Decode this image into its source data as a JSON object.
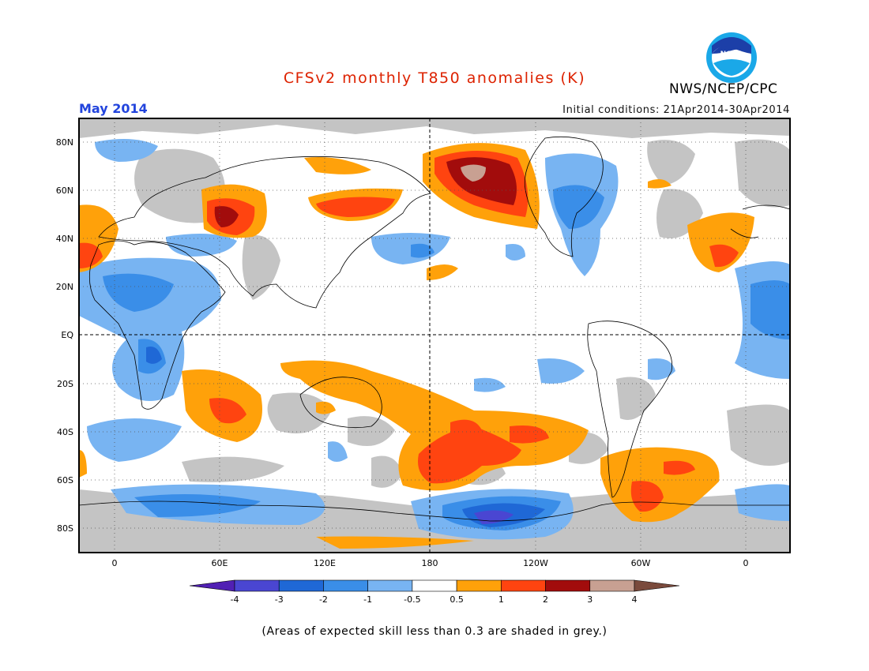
{
  "title": "CFSv2 monthly T850 anomalies (K)",
  "month_label": "May 2014",
  "initial_conditions": "Initial conditions: 21Apr2014-30Apr2014",
  "agency": "NWS/NCEP/CPC",
  "logo_text": "NOAA",
  "footnote": "(Areas of expected skill less than 0.3 are shaded in grey.)",
  "colors": {
    "title": "#dd2200",
    "month": "#2244dd",
    "grey_low_skill": "#c4c4c4",
    "land_outline": "#000000"
  },
  "map": {
    "lat_labels": [
      "80N",
      "60N",
      "40N",
      "20N",
      "EQ",
      "20S",
      "40S",
      "60S",
      "80S"
    ],
    "lon_labels": [
      "0",
      "60E",
      "120E",
      "180",
      "120W",
      "60W",
      "0"
    ]
  },
  "colorbar": {
    "tick_labels": [
      "-4",
      "-3",
      "-2",
      "-1",
      "-0.5",
      "0.5",
      "1",
      "2",
      "3",
      "4"
    ],
    "bins": [
      {
        "color": "#5120b4",
        "range": "< -4"
      },
      {
        "color": "#4a46d2",
        "range": "-4 to -3"
      },
      {
        "color": "#1f68d6",
        "range": "-3 to -2"
      },
      {
        "color": "#3a8ee8",
        "range": "-2 to -1"
      },
      {
        "color": "#78b4f2",
        "range": "-1 to -0.5"
      },
      {
        "color": "#ffffff",
        "range": "-0.5 to 0.5"
      },
      {
        "color": "#ffa10a",
        "range": "0.5 to 1"
      },
      {
        "color": "#ff4410",
        "range": "1 to 2"
      },
      {
        "color": "#a20c0c",
        "range": "2 to 3"
      },
      {
        "color": "#c8a092",
        "range": "3 to 4"
      },
      {
        "color": "#7a4a3c",
        "range": "> 4"
      }
    ]
  }
}
